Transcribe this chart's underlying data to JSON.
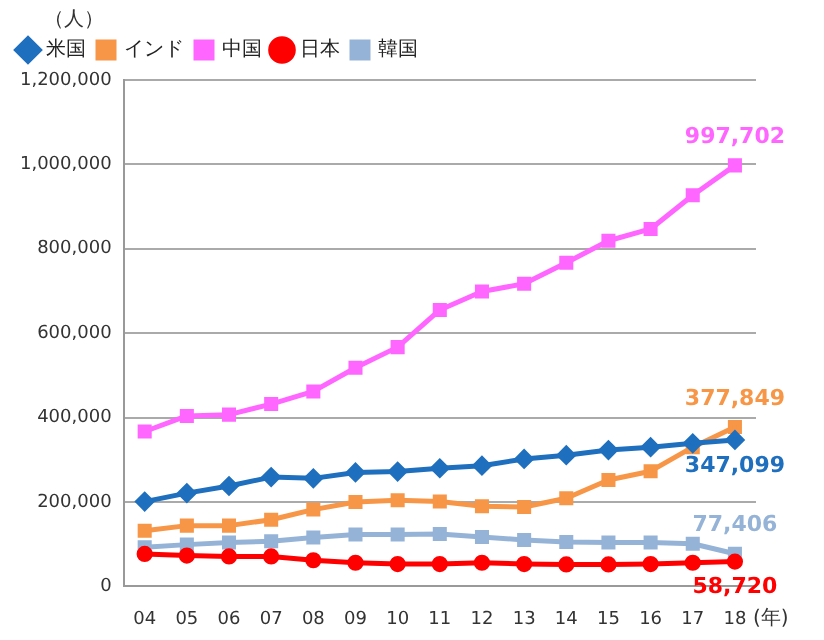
{
  "chart_data": {
    "type": "line",
    "ylabel": "（人）",
    "xlabel": "(年)",
    "categories": [
      "04",
      "05",
      "06",
      "07",
      "08",
      "09",
      "10",
      "11",
      "12",
      "13",
      "14",
      "15",
      "16",
      "17",
      "18"
    ],
    "ylim": [
      0,
      1200000
    ],
    "yticks": [
      {
        "value": 0,
        "label": "0"
      },
      {
        "value": 200000,
        "label": "200,000"
      },
      {
        "value": 400000,
        "label": "400,000"
      },
      {
        "value": 600000,
        "label": "600,000"
      },
      {
        "value": 800000,
        "label": "800,000"
      },
      {
        "value": 1000000,
        "label": "1,000,000"
      },
      {
        "value": 1200000,
        "label": "1,200,000"
      }
    ],
    "grid": "y",
    "legend": "top left",
    "line_style": "solid",
    "series": [
      {
        "name": "米国",
        "color": "#1f6fbf",
        "marker": "diamond",
        "values": [
          201000,
          221000,
          238000,
          259000,
          256000,
          270000,
          272000,
          280000,
          286000,
          302000,
          311000,
          323000,
          330000,
          339000,
          347099
        ],
        "value_labels": [
          null,
          null,
          null,
          null,
          null,
          null,
          null,
          null,
          null,
          null,
          null,
          null,
          null,
          null,
          "347,099"
        ]
      },
      {
        "name": "インド",
        "color": "#f79646",
        "marker": "square",
        "values": [
          132000,
          144000,
          144000,
          158000,
          182000,
          200000,
          204000,
          201000,
          190000,
          188000,
          209000,
          252000,
          273000,
          330000,
          377849
        ],
        "value_labels": [
          null,
          null,
          null,
          null,
          null,
          null,
          null,
          null,
          null,
          null,
          null,
          null,
          null,
          null,
          "377,849"
        ]
      },
      {
        "name": "中国",
        "color": "#ff66ff",
        "marker": "square",
        "values": [
          367000,
          404000,
          407000,
          432000,
          462000,
          518000,
          567000,
          655000,
          699000,
          717000,
          767000,
          819000,
          847000,
          927000,
          997702
        ],
        "value_labels": [
          null,
          null,
          null,
          null,
          null,
          null,
          null,
          null,
          null,
          null,
          null,
          null,
          null,
          null,
          "997,702"
        ]
      },
      {
        "name": "日本",
        "color": "#ff0000",
        "marker": "circle",
        "values": [
          77000,
          73000,
          71000,
          71000,
          62000,
          56000,
          53000,
          53000,
          56000,
          53000,
          52000,
          52000,
          53000,
          56000,
          58720
        ],
        "value_labels": [
          null,
          null,
          null,
          null,
          null,
          null,
          null,
          null,
          null,
          null,
          null,
          null,
          null,
          null,
          "58,720"
        ]
      },
      {
        "name": "韓国",
        "color": "#95b3d7",
        "marker": "square",
        "values": [
          93000,
          99000,
          104000,
          107000,
          116000,
          123000,
          123000,
          124000,
          117000,
          110000,
          105000,
          104000,
          104000,
          101000,
          77406
        ],
        "value_labels": [
          null,
          null,
          null,
          null,
          null,
          null,
          null,
          null,
          null,
          null,
          null,
          null,
          null,
          null,
          "77,406"
        ]
      }
    ]
  }
}
